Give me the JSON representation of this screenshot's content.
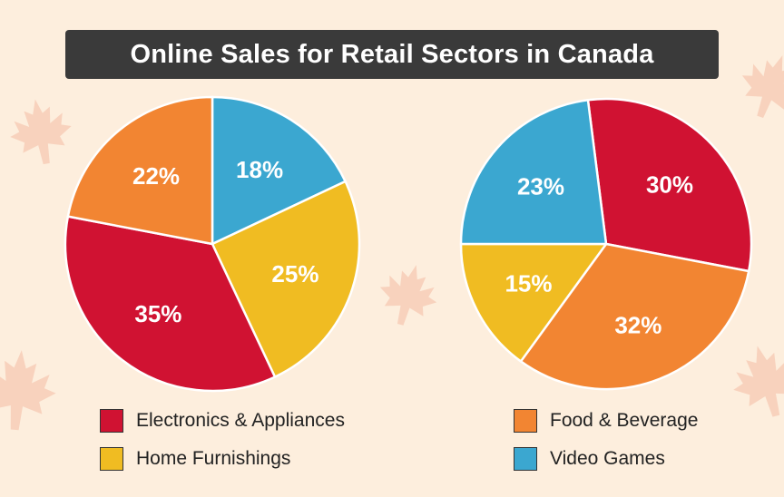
{
  "title": "Online Sales for Retail Sectors in Canada",
  "colors": {
    "Electronics & Appliances": "#d01232",
    "Food & Beverage": "#f28532",
    "Home Furnishings": "#f0bc22",
    "Video Games": "#3ba7d0"
  },
  "legend": [
    {
      "label": "Electronics & Appliances",
      "color": "#d01232"
    },
    {
      "label": "Food & Beverage",
      "color": "#f28532"
    },
    {
      "label": "Home Furnishings",
      "color": "#f0bc22"
    },
    {
      "label": "Video Games",
      "color": "#3ba7d0"
    }
  ],
  "chart_data": [
    {
      "type": "pie",
      "title": "",
      "slices": [
        {
          "category": "Video Games",
          "value": 18,
          "label": "18%"
        },
        {
          "category": "Home Furnishings",
          "value": 25,
          "label": "25%"
        },
        {
          "category": "Electronics & Appliances",
          "value": 35,
          "label": "35%"
        },
        {
          "category": "Food & Beverage",
          "value": 22,
          "label": "22%"
        }
      ]
    },
    {
      "type": "pie",
      "title": "",
      "slices": [
        {
          "category": "Electronics & Appliances",
          "value": 30,
          "label": "30%"
        },
        {
          "category": "Food & Beverage",
          "value": 32,
          "label": "32%"
        },
        {
          "category": "Home Furnishings",
          "value": 15,
          "label": "15%"
        },
        {
          "category": "Video Games",
          "value": 23,
          "label": "23%"
        }
      ]
    }
  ]
}
